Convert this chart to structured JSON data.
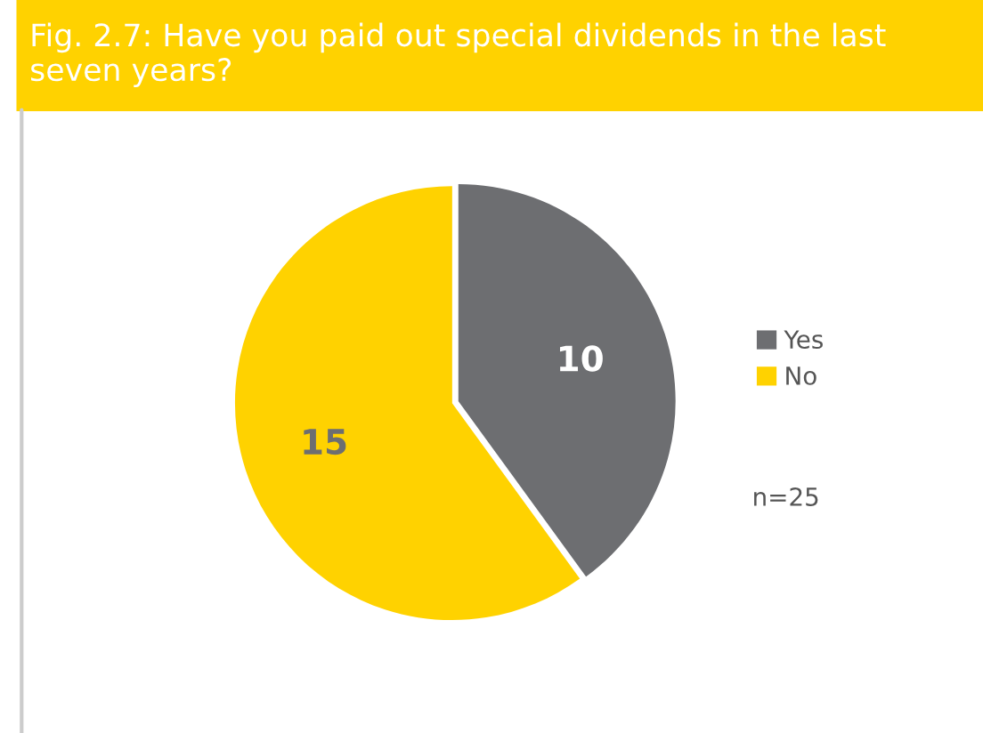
{
  "chart_data": {
    "type": "pie",
    "title": "Fig. 2.7: Have you paid out special dividends in the last seven years?",
    "categories": [
      "Yes",
      "No"
    ],
    "values": [
      10,
      15
    ],
    "colors": [
      "#6d6e71",
      "#ffd200"
    ],
    "data_labels": true,
    "legend": "right",
    "annotations": [
      "n=25"
    ]
  }
}
